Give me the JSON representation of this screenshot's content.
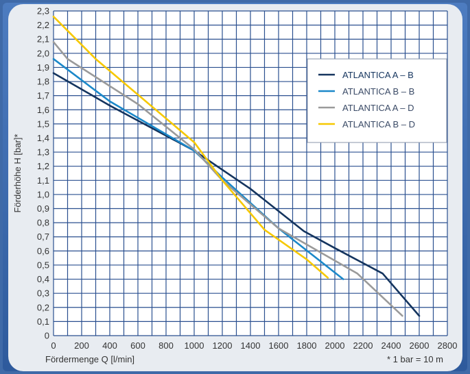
{
  "chart_data": {
    "type": "line",
    "xlabel": "Fördermenge Q [l/min]",
    "ylabel": "Förderhöhe H [bar]*",
    "footnote": "* 1 bar = 10 m",
    "xlim": [
      0,
      2800
    ],
    "ylim": [
      0,
      2.3
    ],
    "x_ticks": [
      0,
      200,
      400,
      600,
      800,
      1000,
      1200,
      1400,
      1600,
      1800,
      2000,
      2200,
      2400,
      2600,
      2800
    ],
    "x_tick_labels": [
      "0",
      "200",
      "400",
      "600",
      "800",
      "1000",
      "1200",
      "1400",
      "1600",
      "1800",
      "2000",
      "2200",
      "2400",
      "2600",
      "2800"
    ],
    "y_ticks": [
      0,
      0.1,
      0.2,
      0.3,
      0.4,
      0.5,
      0.6,
      0.7,
      0.8,
      0.9,
      1.0,
      1.1,
      1.2,
      1.3,
      1.4,
      1.5,
      1.6,
      1.7,
      1.8,
      1.9,
      2.0,
      2.1,
      2.2,
      2.3
    ],
    "y_tick_labels": [
      "0",
      "0,1",
      "0,2",
      "0,3",
      "0,4",
      "0,5",
      "0,6",
      "0,7",
      "0,8",
      "0,9",
      "1,0",
      "1,1",
      "1,2",
      "1,3",
      "1,4",
      "1,5",
      "1,6",
      "1,7",
      "1,8",
      "1,9",
      "2,0",
      "2,1",
      "2,2",
      "2,3"
    ],
    "grid": true,
    "legend_position": "top-right",
    "series": [
      {
        "name": "ATLANTICA A – B",
        "color": "#14345e",
        "x": [
          0,
          400,
          1000,
          1400,
          1780,
          2000,
          2340,
          2600
        ],
        "y": [
          1.86,
          1.63,
          1.31,
          1.04,
          0.74,
          0.62,
          0.44,
          0.14
        ]
      },
      {
        "name": "ATLANTICA B – B",
        "color": "#1b88c9",
        "x": [
          0,
          400,
          1000,
          1200,
          1600,
          2060
        ],
        "y": [
          1.96,
          1.66,
          1.31,
          1.12,
          0.76,
          0.4
        ]
      },
      {
        "name": "ATLANTICA A – D",
        "color": "#9a9a9a",
        "x": [
          0,
          100,
          600,
          1000,
          1200,
          1600,
          2160,
          2480
        ],
        "y": [
          2.08,
          1.96,
          1.64,
          1.32,
          1.1,
          0.76,
          0.44,
          0.14
        ]
      },
      {
        "name": "ATLANTICA B – D",
        "color": "#f6c800",
        "x": [
          0,
          300,
          1000,
          1200,
          1500,
          1800,
          1950
        ],
        "y": [
          2.26,
          1.96,
          1.37,
          1.1,
          0.75,
          0.54,
          0.41
        ]
      }
    ]
  }
}
